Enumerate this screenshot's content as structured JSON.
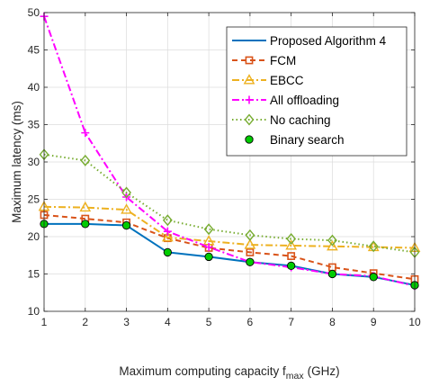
{
  "chart_data": {
    "type": "line",
    "xlabel": "Maximum computing capacity f",
    "xlabel_sub": "max",
    "xlabel_unit": "(GHz)",
    "ylabel": "Maximum latency (ms)",
    "xlim": [
      1,
      10
    ],
    "ylim": [
      10,
      50
    ],
    "x_ticks": [
      1,
      2,
      3,
      4,
      5,
      6,
      7,
      8,
      9,
      10
    ],
    "y_ticks": [
      10,
      15,
      20,
      25,
      30,
      35,
      40,
      45,
      50
    ],
    "grid": true,
    "legend_position": "top-right",
    "x": [
      1,
      2,
      3,
      4,
      5,
      6,
      7,
      8,
      9,
      10
    ],
    "series": [
      {
        "name": "Proposed Algorithm 4",
        "color": "#0072BD",
        "dash": "solid",
        "marker": "none",
        "values": [
          21.7,
          21.7,
          21.5,
          17.9,
          17.3,
          16.6,
          16.1,
          15.0,
          14.6,
          13.5
        ]
      },
      {
        "name": "FCM",
        "color": "#D95319",
        "dash": "dashed",
        "marker": "square",
        "values": [
          22.9,
          22.4,
          21.9,
          19.8,
          18.5,
          17.9,
          17.4,
          15.9,
          15.1,
          14.3
        ]
      },
      {
        "name": "EBCC",
        "color": "#EDB120",
        "dash": "dashdot",
        "marker": "triangle",
        "values": [
          24.0,
          23.9,
          23.6,
          19.9,
          19.4,
          18.9,
          18.8,
          18.7,
          18.6,
          18.5
        ]
      },
      {
        "name": "All offloading",
        "color": "#FF00FF",
        "dash": "dashdot",
        "marker": "plus",
        "values": [
          49.5,
          33.9,
          25.3,
          20.7,
          18.6,
          16.6,
          15.9,
          15.0,
          14.7,
          13.4
        ]
      },
      {
        "name": "No caching",
        "color": "#77AC30",
        "dash": "dotted",
        "marker": "diamond",
        "values": [
          31.0,
          30.2,
          25.9,
          22.2,
          21.0,
          20.2,
          19.7,
          19.5,
          18.7,
          17.9
        ]
      },
      {
        "name": "Binary search",
        "color": "#00CC00",
        "dash": "none",
        "marker": "circle",
        "values": [
          21.7,
          21.7,
          21.5,
          17.9,
          17.3,
          16.6,
          16.1,
          15.0,
          14.6,
          13.5
        ]
      }
    ]
  }
}
